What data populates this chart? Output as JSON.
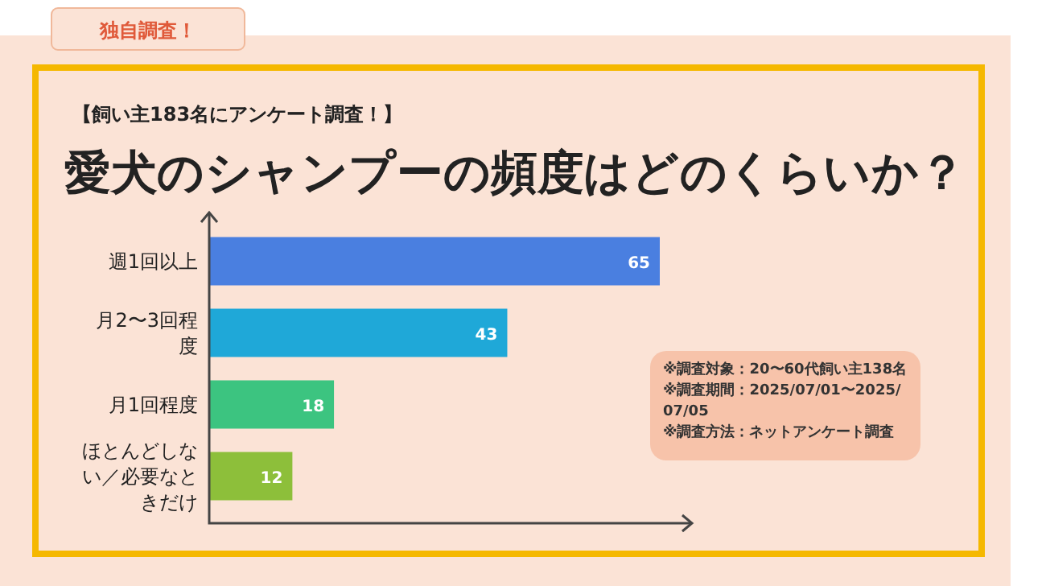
{
  "chart_data": {
    "type": "bar",
    "orientation": "horizontal",
    "title": "愛犬のシャンプーの頻度はどのくらいか？",
    "subtitle": "【飼い主183名にアンケート調査！】",
    "categories": [
      "週1回以上",
      "月2〜3回程度",
      "月1回程度",
      "ほとんどしない／必要なときだけ"
    ],
    "values": [
      65,
      43,
      18,
      12
    ],
    "colors": [
      "#4a7fe0",
      "#1fa8d8",
      "#3cc480",
      "#8dbf3a"
    ],
    "data_labels": true,
    "annotations": [
      "独自調査！",
      "※調査対象：20〜60代飼い主138名",
      "※調査期間：2025/07/01〜2025/07/05",
      "※調査方法：ネットアンケート調査"
    ]
  }
}
